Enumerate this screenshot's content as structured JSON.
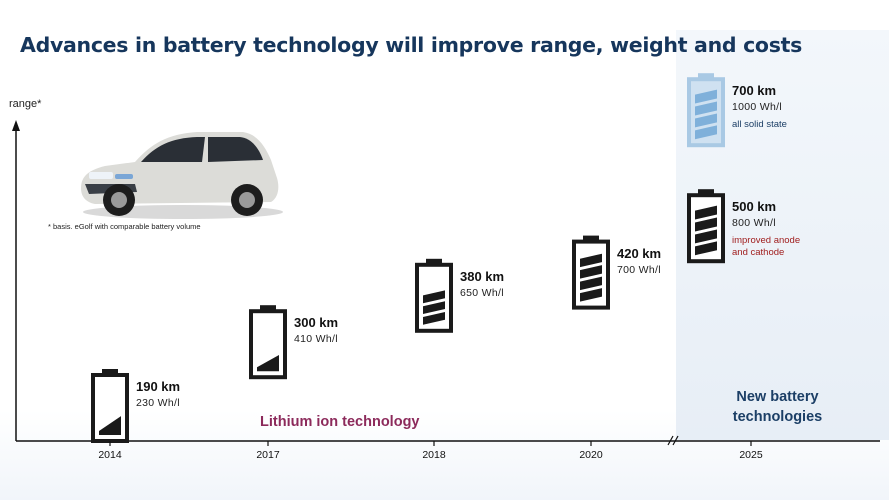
{
  "title": "Advances in battery technology will improve range, weight and costs",
  "colors": {
    "title": "#16365c",
    "battery": "#1a1a1a",
    "battery_future": "#a9c9e4",
    "lithium_label": "#8c2a5b",
    "improved_note": "#a01e1e",
    "solid_note": "#1c3f66"
  },
  "footnote": "* basis. eGolf with comparable battery volume",
  "lithium_label": "Lithium ion technology",
  "new_tech_label": [
    "New battery",
    "technologies"
  ],
  "chart_data": {
    "type": "scatter",
    "ylabel": "range*",
    "x_axis_break": "between 2020 and 2025",
    "categories": [
      "2014",
      "2017",
      "2018",
      "2020",
      "2025",
      "2025"
    ],
    "points": [
      {
        "year": "2014",
        "range": "190 km",
        "energy_density": "230 Wh/l",
        "range_km": 190,
        "fill_level": 0.35
      },
      {
        "year": "2017",
        "range": "300 km",
        "energy_density": "410 Wh/l",
        "range_km": 300,
        "fill_level": 0.3
      },
      {
        "year": "2018",
        "range": "380 km",
        "energy_density": "650 Wh/l",
        "range_km": 380,
        "fill_level": 0.6
      },
      {
        "year": "2020",
        "range": "420 km",
        "energy_density": "700 Wh/l",
        "range_km": 420,
        "fill_level": 0.85
      },
      {
        "year": "2025",
        "range": "500 km",
        "energy_density": "800 Wh/l",
        "range_km": 500,
        "fill_level": 0.88,
        "note": [
          "improved  anode",
          "and cathode"
        ]
      },
      {
        "year": "2025",
        "range": "700 km",
        "energy_density": "1000 Wh/l",
        "range_km": 700,
        "fill_level": 0.88,
        "note": [
          "all solid state"
        ],
        "future": true
      }
    ]
  }
}
